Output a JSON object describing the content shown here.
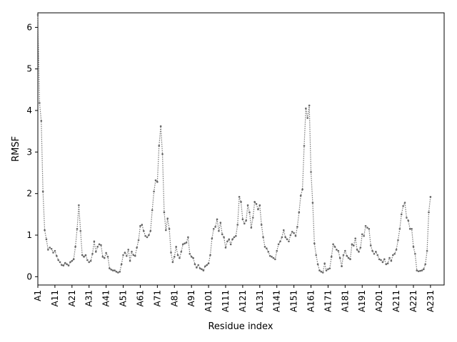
{
  "chart_data": {
    "type": "line",
    "xlabel": "Residue index",
    "ylabel": "RMSF",
    "title": "",
    "grid": false,
    "line_color": "#777777",
    "line_style": "dotted",
    "marker": "small-dots",
    "ylim": [
      -0.2,
      6.35
    ],
    "yticks": [
      0,
      1,
      2,
      3,
      4,
      5,
      6
    ],
    "ytick_labels": [
      "0",
      "1",
      "2",
      "3",
      "4",
      "5",
      "6"
    ],
    "xticks": [
      1,
      11,
      21,
      31,
      41,
      51,
      61,
      71,
      81,
      91,
      101,
      111,
      121,
      131,
      141,
      151,
      161,
      171,
      181,
      191,
      201,
      211,
      221,
      231
    ],
    "xtick_labels": [
      "A1",
      "A11",
      "A21",
      "A31",
      "A41",
      "A51",
      "A61",
      "A71",
      "A81",
      "A91",
      "A101",
      "A111",
      "A121",
      "A131",
      "A141",
      "A151",
      "A161",
      "A171",
      "A181",
      "A191",
      "A201",
      "A211",
      "A221",
      "A231"
    ],
    "xlim": [
      1,
      239
    ],
    "x_start": 1,
    "values": [
      6.3,
      4.18,
      3.75,
      2.05,
      1.12,
      0.9,
      0.65,
      0.7,
      0.67,
      0.58,
      0.62,
      0.5,
      0.4,
      0.35,
      0.28,
      0.27,
      0.33,
      0.3,
      0.27,
      0.35,
      0.38,
      0.42,
      0.72,
      1.15,
      1.72,
      1.1,
      0.52,
      0.48,
      0.52,
      0.4,
      0.35,
      0.38,
      0.55,
      0.85,
      0.6,
      0.72,
      0.78,
      0.76,
      0.48,
      0.45,
      0.57,
      0.48,
      0.2,
      0.17,
      0.15,
      0.15,
      0.12,
      0.1,
      0.12,
      0.3,
      0.52,
      0.58,
      0.5,
      0.65,
      0.38,
      0.6,
      0.52,
      0.5,
      0.7,
      0.88,
      1.22,
      1.25,
      1.1,
      0.98,
      0.95,
      1.0,
      1.1,
      1.6,
      2.05,
      2.32,
      2.28,
      3.15,
      3.62,
      2.95,
      1.55,
      1.12,
      1.4,
      1.15,
      0.58,
      0.35,
      0.48,
      0.72,
      0.52,
      0.45,
      0.6,
      0.78,
      0.8,
      0.82,
      0.95,
      0.55,
      0.48,
      0.45,
      0.3,
      0.22,
      0.28,
      0.2,
      0.18,
      0.15,
      0.25,
      0.28,
      0.32,
      0.52,
      0.92,
      1.15,
      1.2,
      1.38,
      1.1,
      1.3,
      1.02,
      0.95,
      0.7,
      0.85,
      0.9,
      0.78,
      0.9,
      0.95,
      0.98,
      1.25,
      1.92,
      1.8,
      1.38,
      1.28,
      1.35,
      1.72,
      1.55,
      1.18,
      1.42,
      1.8,
      1.75,
      1.62,
      1.72,
      1.25,
      0.95,
      0.72,
      0.68,
      0.6,
      0.5,
      0.48,
      0.45,
      0.42,
      0.62,
      0.78,
      0.85,
      0.95,
      1.12,
      0.95,
      0.9,
      0.85,
      1.0,
      1.08,
      1.05,
      0.98,
      1.2,
      1.55,
      1.95,
      2.1,
      3.15,
      4.05,
      3.82,
      4.12,
      2.52,
      1.78,
      0.8,
      0.52,
      0.3,
      0.15,
      0.12,
      0.1,
      0.32,
      0.15,
      0.18,
      0.2,
      0.48,
      0.78,
      0.72,
      0.65,
      0.62,
      0.45,
      0.25,
      0.52,
      0.62,
      0.5,
      0.45,
      0.42,
      0.78,
      0.75,
      0.92,
      0.65,
      0.6,
      0.7,
      1.02,
      0.98,
      1.22,
      1.18,
      1.15,
      0.75,
      0.62,
      0.55,
      0.6,
      0.52,
      0.42,
      0.4,
      0.35,
      0.42,
      0.3,
      0.32,
      0.45,
      0.38,
      0.52,
      0.55,
      0.65,
      0.88,
      1.15,
      1.5,
      1.7,
      1.78,
      1.42,
      1.35,
      1.15,
      1.15,
      0.72,
      0.55,
      0.15,
      0.13,
      0.14,
      0.15,
      0.18,
      0.3,
      0.62,
      1.55,
      1.92
    ]
  }
}
